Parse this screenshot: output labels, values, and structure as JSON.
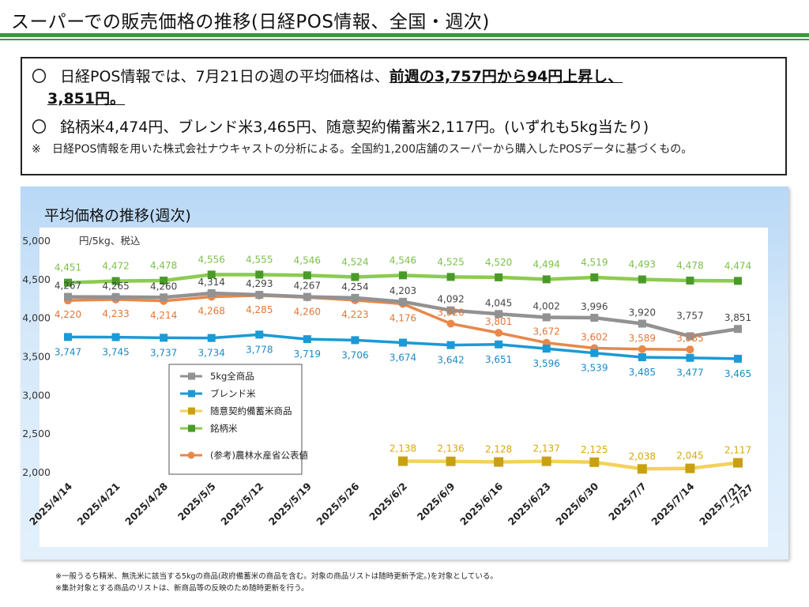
{
  "header": {
    "title": "スーパーでの販売価格の推移(日経POS情報、全国・週次)"
  },
  "summary": {
    "line1_mark": "〇",
    "line1_text": "日経POS情報では、7月21日の週の平均価格は、",
    "line1_highlight": "前週の3,757円から94円上昇し、",
    "line1_highlight2": "3,851円。",
    "line2_mark": "〇",
    "line2_text": "銘柄米4,474円、ブレンド米3,465円、随意契約備蓄米2,117円。(いずれも5kg当たり)",
    "note_mark": "※",
    "note_text": "日経POS情報を用いた株式会社ナウキャストの分析による。全国約1,200店舗のスーパーから購入したPOSデータに基づくもの。"
  },
  "chart_heading": "平均価格の推移(週次)",
  "footnotes": [
    "※一般うるち精米、無洗米に該当する5kgの商品(政府備蓄米の商品を含む。対象の商品リストは随時更新予定。)を対象としている。",
    "※集計対象とする商品のリストは、新商品等の反映のため随時更新を行う。"
  ],
  "chart_data": {
    "type": "line",
    "title": "",
    "ylabel": "円/5kg、税込",
    "ylim": [
      2000,
      5000
    ],
    "yticks": [
      "2,000",
      "2,500",
      "3,000",
      "3,500",
      "4,000",
      "4,500",
      "5,000"
    ],
    "ytick_values": [
      2000,
      2500,
      3000,
      3500,
      4000,
      4500,
      5000
    ],
    "grid": false,
    "legend_position": "center-left",
    "categories": [
      "2025/4/14",
      "2025/4/21",
      "2025/4/28",
      "2025/5/5",
      "2025/5/12",
      "2025/5/19",
      "2025/5/26",
      "2025/6/2",
      "2025/6/9",
      "2025/6/16",
      "2025/6/23",
      "2025/6/30",
      "2025/7/7",
      "2025/7/14",
      "2025/7/21 ~7/27"
    ],
    "series": [
      {
        "name": "5kg全商品",
        "color": "#929292",
        "marker": "square",
        "values": [
          4267,
          4265,
          4260,
          4314,
          4293,
          4267,
          4254,
          4203,
          4092,
          4045,
          4002,
          3996,
          3920,
          3757,
          3851
        ],
        "labels": [
          "4,267",
          "4,265",
          "4,260",
          "4,314",
          "4,293",
          "4,267",
          "4,254",
          "4,203",
          "4,092",
          "4,045",
          "4,002",
          "3,996",
          "3,920",
          "3,757",
          "3,851"
        ],
        "label_color": "#444444"
      },
      {
        "name": "ブレンド米",
        "color": "#1a9ad6",
        "marker": "square",
        "values": [
          3747,
          3745,
          3737,
          3734,
          3778,
          3719,
          3706,
          3674,
          3642,
          3651,
          3596,
          3539,
          3485,
          3477,
          3465
        ],
        "labels": [
          "3,747",
          "3,745",
          "3,737",
          "3,734",
          "3,778",
          "3,719",
          "3,706",
          "3,674",
          "3,642",
          "3,651",
          "3,596",
          "3,539",
          "3,485",
          "3,477",
          "3,465"
        ],
        "label_color": "#1a8ac6"
      },
      {
        "name": "随意契約備蓄米商品",
        "color": "#f3d25a",
        "marker_color": "#c8a012",
        "marker": "square",
        "values": [
          null,
          null,
          null,
          null,
          null,
          null,
          null,
          2138,
          2136,
          2128,
          2137,
          2125,
          2038,
          2045,
          2117
        ],
        "labels": [
          "",
          "",
          "",
          "",
          "",
          "",
          "",
          "2,138",
          "2,136",
          "2,128",
          "2,137",
          "2,125",
          "2,038",
          "2,045",
          "2,117"
        ],
        "label_color": "#d9a80a"
      },
      {
        "name": "銘柄米",
        "color": "#8ccb4f",
        "marker_color": "#4a9a2a",
        "marker": "square",
        "values": [
          4451,
          4472,
          4478,
          4556,
          4555,
          4546,
          4524,
          4546,
          4525,
          4520,
          4494,
          4519,
          4493,
          4478,
          4474
        ],
        "labels": [
          "4,451",
          "4,472",
          "4,478",
          "4,556",
          "4,555",
          "4,546",
          "4,524",
          "4,546",
          "4,525",
          "4,520",
          "4,494",
          "4,519",
          "4,493",
          "4,478",
          "4,474"
        ],
        "label_color": "#7cc04a"
      },
      {
        "name": "(参考)農林水産省公表値",
        "color": "#e8884a",
        "marker": "circle",
        "values": [
          4220,
          4233,
          4214,
          4268,
          4285,
          4260,
          4223,
          4176,
          3920,
          3801,
          3672,
          3602,
          3589,
          3585,
          null
        ],
        "labels": [
          "4,220",
          "4,233",
          "4,214",
          "4,268",
          "4,285",
          "4,260",
          "4,223",
          "4,176",
          "3,920",
          "3,801",
          "3,672",
          "3,602",
          "3,589",
          "3,585",
          ""
        ],
        "label_color": "#e07838"
      }
    ]
  }
}
